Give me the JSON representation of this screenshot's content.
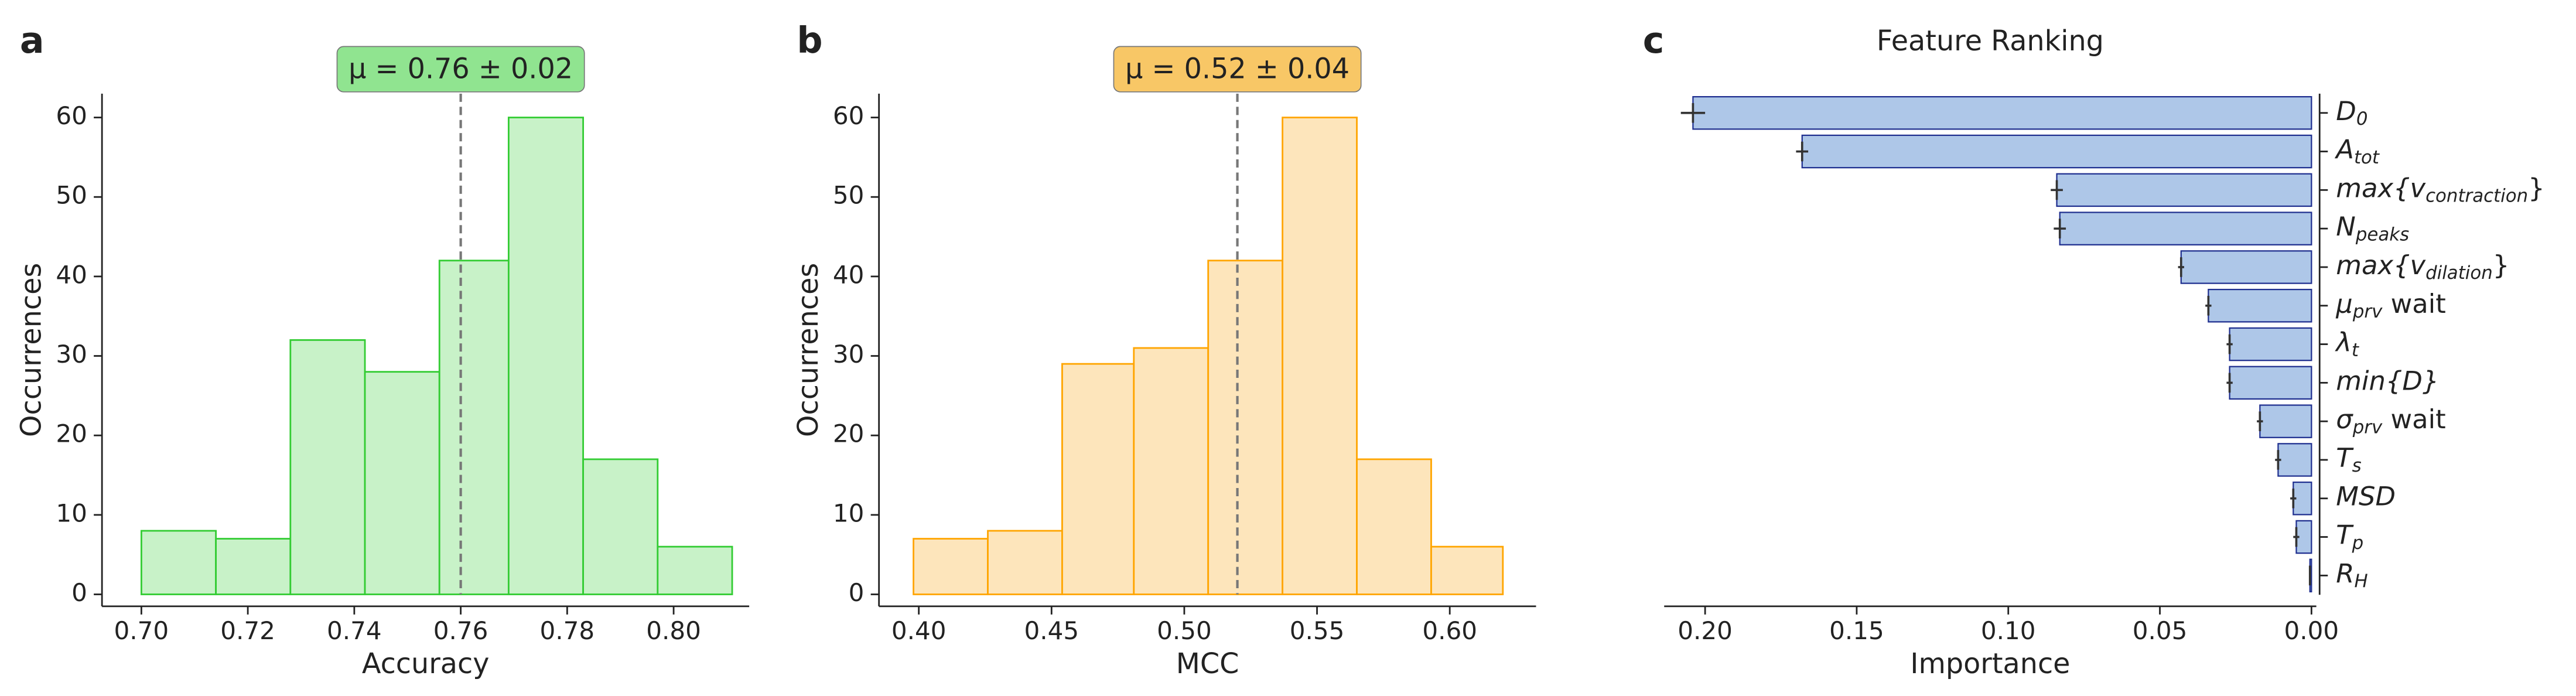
{
  "chart_data": [
    {
      "type": "histogram",
      "panel": "a",
      "xlabel": "Accuracy",
      "ylabel": "Occurrences",
      "bins": [
        0.7,
        0.714,
        0.728,
        0.742,
        0.756,
        0.769,
        0.783,
        0.797,
        0.811
      ],
      "values": [
        8,
        7,
        32,
        28,
        42,
        60,
        17,
        6
      ],
      "color": "#c8f2c8",
      "edgecolor": "#33cc33",
      "xlim": [
        0.6926,
        0.8142
      ],
      "ylim": [
        -1.5,
        63
      ],
      "xticks": [
        {
          "value": 0.7,
          "label": "0.70"
        },
        {
          "value": 0.72,
          "label": "0.72"
        },
        {
          "value": 0.74,
          "label": "0.74"
        },
        {
          "value": 0.76,
          "label": "0.76"
        },
        {
          "value": 0.78,
          "label": "0.78"
        },
        {
          "value": 0.8,
          "label": "0.80"
        }
      ],
      "yticks": [
        0,
        10,
        20,
        30,
        40,
        50,
        60
      ],
      "mean": 0.76,
      "annotation": "μ = 0.76 ± 0.02",
      "annotation_color": "#90e490"
    },
    {
      "type": "histogram",
      "panel": "b",
      "xlabel": "MCC",
      "ylabel": "Occurrences",
      "bins": [
        0.398,
        0.426,
        0.454,
        0.481,
        0.509,
        0.537,
        0.565,
        0.593,
        0.62
      ],
      "values": [
        7,
        8,
        29,
        31,
        42,
        60,
        17,
        6
      ],
      "color": "#fde5bb",
      "edgecolor": "#ffa500",
      "xlim": [
        0.385,
        0.6325
      ],
      "ylim": [
        -1.5,
        63
      ],
      "xticks": [
        {
          "value": 0.4,
          "label": "0.40"
        },
        {
          "value": 0.45,
          "label": "0.45"
        },
        {
          "value": 0.5,
          "label": "0.50"
        },
        {
          "value": 0.55,
          "label": "0.55"
        },
        {
          "value": 0.6,
          "label": "0.60"
        }
      ],
      "yticks": [
        0,
        10,
        20,
        30,
        40,
        50,
        60
      ],
      "mean": 0.52,
      "annotation": "μ = 0.52 ± 0.04",
      "annotation_color": "#f8c766"
    },
    {
      "type": "barh",
      "panel": "c",
      "title": "Feature Ranking",
      "xlabel": "Importance",
      "categories": [
        {
          "main": "D",
          "sub": "0"
        },
        {
          "main": "A",
          "sub": "tot"
        },
        {
          "main": "max{v",
          "sub": "contraction",
          "tail": "}"
        },
        {
          "main": "N",
          "sub": "peaks"
        },
        {
          "main": "max{v",
          "sub": "dilation",
          "tail": "}"
        },
        {
          "main": "μ",
          "sub": "prv",
          "tail": " wait"
        },
        {
          "main": "λ",
          "sub": "t"
        },
        {
          "main": "min{D}"
        },
        {
          "main": "σ",
          "sub": "prv",
          "tail": " wait"
        },
        {
          "main": "T",
          "sub": "s"
        },
        {
          "main": "MSD"
        },
        {
          "main": "T",
          "sub": "p"
        },
        {
          "main": "R",
          "sub": "H"
        }
      ],
      "values": [
        0.204,
        0.168,
        0.084,
        0.083,
        0.043,
        0.034,
        0.027,
        0.027,
        0.017,
        0.011,
        0.006,
        0.005,
        0.0005
      ],
      "errors": [
        0.004,
        0.002,
        0.002,
        0.002,
        0.001,
        0.001,
        0.001,
        0.001,
        0.001,
        0.001,
        0.001,
        0.001,
        0.0001
      ],
      "color": "#aec7e8",
      "edgecolor": "#1f2f8f",
      "xlim": [
        0.2135,
        -0.0016
      ],
      "xticks": [
        {
          "value": 0.2,
          "label": "0.20"
        },
        {
          "value": 0.15,
          "label": "0.15"
        },
        {
          "value": 0.1,
          "label": "0.10"
        },
        {
          "value": 0.05,
          "label": "0.05"
        },
        {
          "value": 0,
          "label": "0.00"
        }
      ]
    }
  ]
}
